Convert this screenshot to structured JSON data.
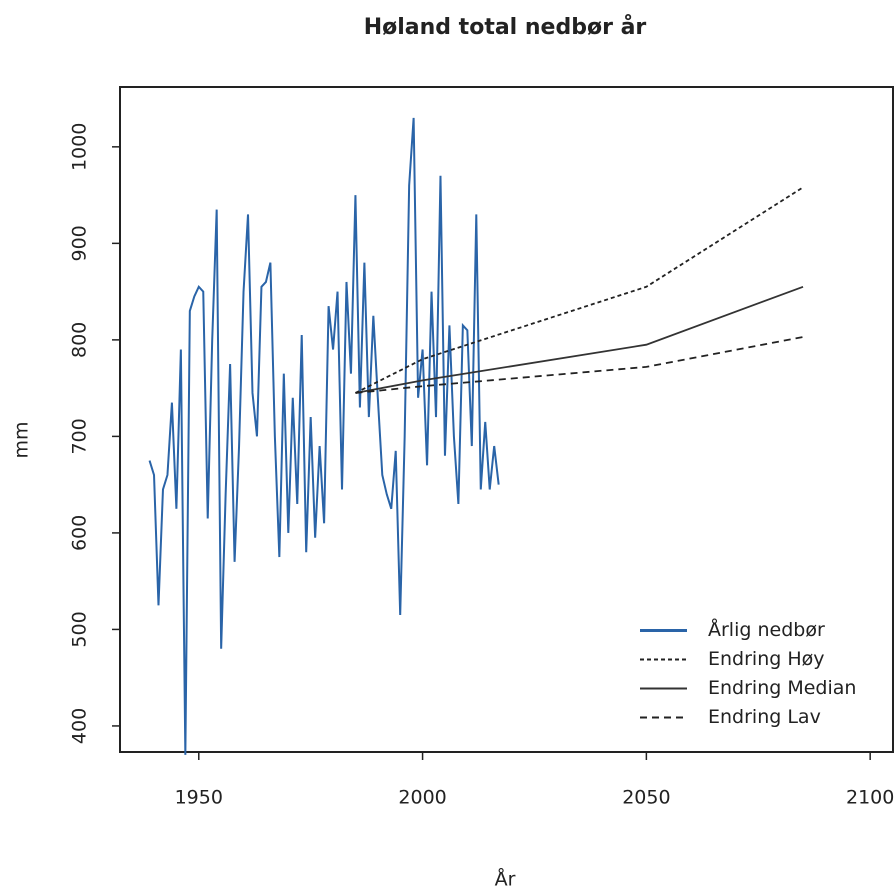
{
  "chart_data": {
    "type": "line",
    "title": "Høland total nedbør  år",
    "xlabel": "År",
    "ylabel": "mm",
    "xlim": [
      1932.4,
      2105.1
    ],
    "ylim": [
      373,
      1062
    ],
    "xticks": [
      1950,
      2000,
      2050,
      2100
    ],
    "yticks": [
      400,
      500,
      600,
      700,
      800,
      900,
      1000
    ],
    "legend": "bottom-right",
    "series": [
      {
        "name": "Årlig nedbør",
        "color": "#2a64a8",
        "dash": "solid",
        "x": [
          1939,
          1940,
          1941,
          1942,
          1943,
          1944,
          1945,
          1946,
          1947,
          1948,
          1949,
          1950,
          1951,
          1952,
          1953,
          1954,
          1955,
          1956,
          1957,
          1958,
          1959,
          1960,
          1961,
          1962,
          1963,
          1964,
          1965,
          1966,
          1967,
          1968,
          1969,
          1970,
          1971,
          1972,
          1973,
          1974,
          1975,
          1976,
          1977,
          1978,
          1979,
          1980,
          1981,
          1982,
          1983,
          1984,
          1985,
          1986,
          1987,
          1988,
          1989,
          1990,
          1991,
          1992,
          1993,
          1994,
          1995,
          1996,
          1997,
          1998,
          1999,
          2000,
          2001,
          2002,
          2003,
          2004,
          2005,
          2006,
          2007,
          2008,
          2009,
          2010,
          2011,
          2012,
          2013,
          2014,
          2015,
          2016,
          2017
        ],
        "values": [
          675,
          660,
          525,
          645,
          660,
          735,
          625,
          790,
          370,
          830,
          845,
          855,
          850,
          615,
          800,
          935,
          480,
          640,
          775,
          570,
          690,
          850,
          930,
          745,
          700,
          855,
          860,
          880,
          700,
          575,
          765,
          600,
          740,
          630,
          805,
          580,
          720,
          595,
          690,
          610,
          835,
          790,
          850,
          645,
          860,
          765,
          950,
          730,
          880,
          720,
          825,
          740,
          660,
          640,
          625,
          685,
          515,
          700,
          960,
          1030,
          740,
          790,
          670,
          850,
          720,
          970,
          680,
          815,
          700,
          630,
          815,
          810,
          690,
          930,
          645,
          715,
          645,
          690,
          650
        ]
      },
      {
        "name": "Endring Høy",
        "color": "#222222",
        "dash": "dotted",
        "x": [
          1985,
          2000,
          2050,
          2085
        ],
        "values": [
          745,
          780,
          855,
          958
        ]
      },
      {
        "name": "Endring Median",
        "color": "#333333",
        "dash": "solid",
        "x": [
          1985,
          2000,
          2050,
          2085
        ],
        "values": [
          745,
          758,
          795,
          855
        ]
      },
      {
        "name": "Endring Lav",
        "color": "#222222",
        "dash": "dashed",
        "x": [
          1985,
          2000,
          2050,
          2085
        ],
        "values": [
          745,
          752,
          772,
          803
        ]
      }
    ]
  }
}
